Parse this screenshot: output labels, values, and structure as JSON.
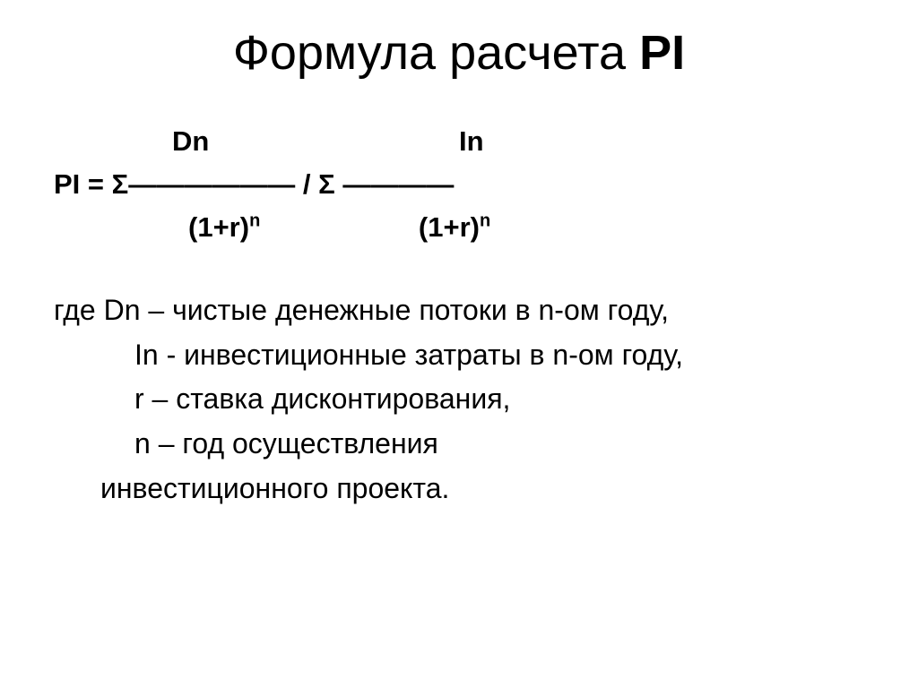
{
  "title": {
    "prefix": "Формула расчета ",
    "bold": "PI"
  },
  "formula": {
    "num1": "Dn",
    "num2": "In",
    "lhs": "PI",
    "eq": "  = ",
    "sigma": "Σ",
    "bar1": "――――――",
    "divider": "   /   ",
    "bar2": "――――",
    "den_base": "(1+r)",
    "den_exp": "n"
  },
  "defs": {
    "where": "где ",
    "d1_a": "Dn – чистые денежные потоки в n-ом году,",
    "d2": "In  - инвестиционные затраты  в n-ом году,",
    "d3": "r – ставка дисконтирования,",
    "d4": "n – год осуществления",
    "d4b": "инвестиционного проекта."
  },
  "style": {
    "bg": "#ffffff",
    "fg": "#000000",
    "title_fontsize": 54,
    "body_fontsize": 32,
    "font_family": "Arial"
  }
}
